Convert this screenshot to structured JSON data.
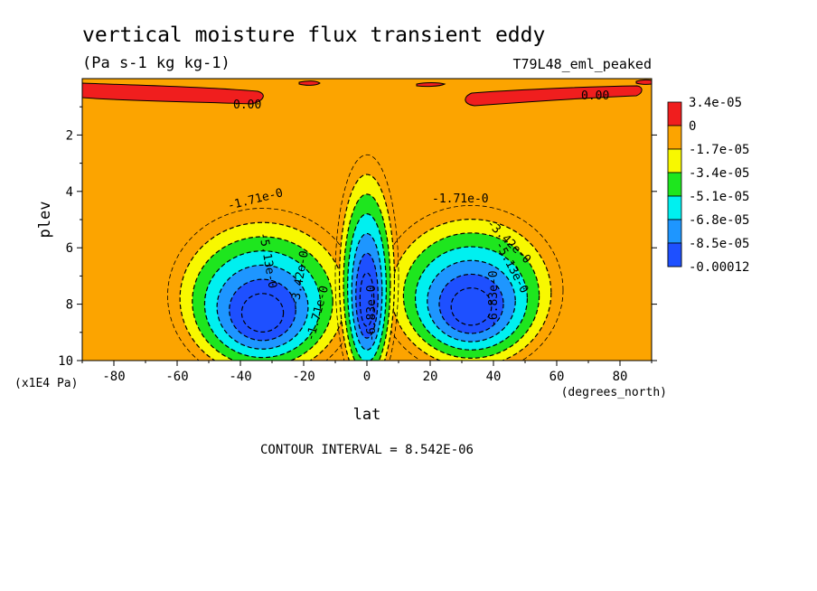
{
  "chart_data": {
    "type": "heatmap",
    "title": "vertical moisture flux transient eddy",
    "units": "(Pa s-1 kg kg-1)",
    "run_label": "T79L48_eml_peaked",
    "xlabel": "lat",
    "x_units": "(degrees_north)",
    "ylabel": "plev",
    "y_units": "(x1E4 Pa)",
    "xlim": [
      -90,
      90
    ],
    "ylim": [
      0,
      10
    ],
    "y_inverted": true,
    "x_ticks": [
      -80,
      -60,
      -40,
      -20,
      0,
      20,
      40,
      60,
      80
    ],
    "y_ticks": [
      2,
      4,
      6,
      8,
      10
    ],
    "footer": "CONTOUR INTERVAL = 8.542E-06",
    "colorbar": {
      "position": "right",
      "levels": [
        {
          "label": "3.4e-05",
          "color": "#f01e1e"
        },
        {
          "label": "0",
          "color": "#fca400"
        },
        {
          "label": "-1.7e-05",
          "color": "#f8f800"
        },
        {
          "label": "-3.4e-05",
          "color": "#1ee61e"
        },
        {
          "label": "-5.1e-05",
          "color": "#00f0f0"
        },
        {
          "label": "-6.8e-05",
          "color": "#1e96ff"
        },
        {
          "label": "-8.5e-05",
          "color": "#1e50ff"
        },
        {
          "label": "-0.00012",
          "color": ""
        }
      ]
    },
    "features": [
      {
        "name": "southern-cell",
        "center_lat": -33,
        "center_plev": 7.7,
        "half_width_lat": 30,
        "half_depth_plev": 3.1,
        "min_value": -0.00012
      },
      {
        "name": "northern-cell",
        "center_lat": 33,
        "center_plev": 7.5,
        "half_width_lat": 29,
        "half_depth_plev": 3.0,
        "min_value": -0.00012
      },
      {
        "name": "equatorial-cell",
        "center_lat": 0,
        "center_plev": 7.0,
        "half_width_lat": 10,
        "half_depth_plev": 4.3,
        "min_value": -0.0001
      }
    ],
    "annotations": [
      "0.00",
      "0.00",
      "-1.71e-0",
      "-1.71e-0",
      "-3.42e-0",
      "-5.13e-0",
      "-6.83e-0",
      "-6.83e-0",
      "-5.13e-0",
      "-3.42e-0",
      "-1.71e-0"
    ]
  }
}
